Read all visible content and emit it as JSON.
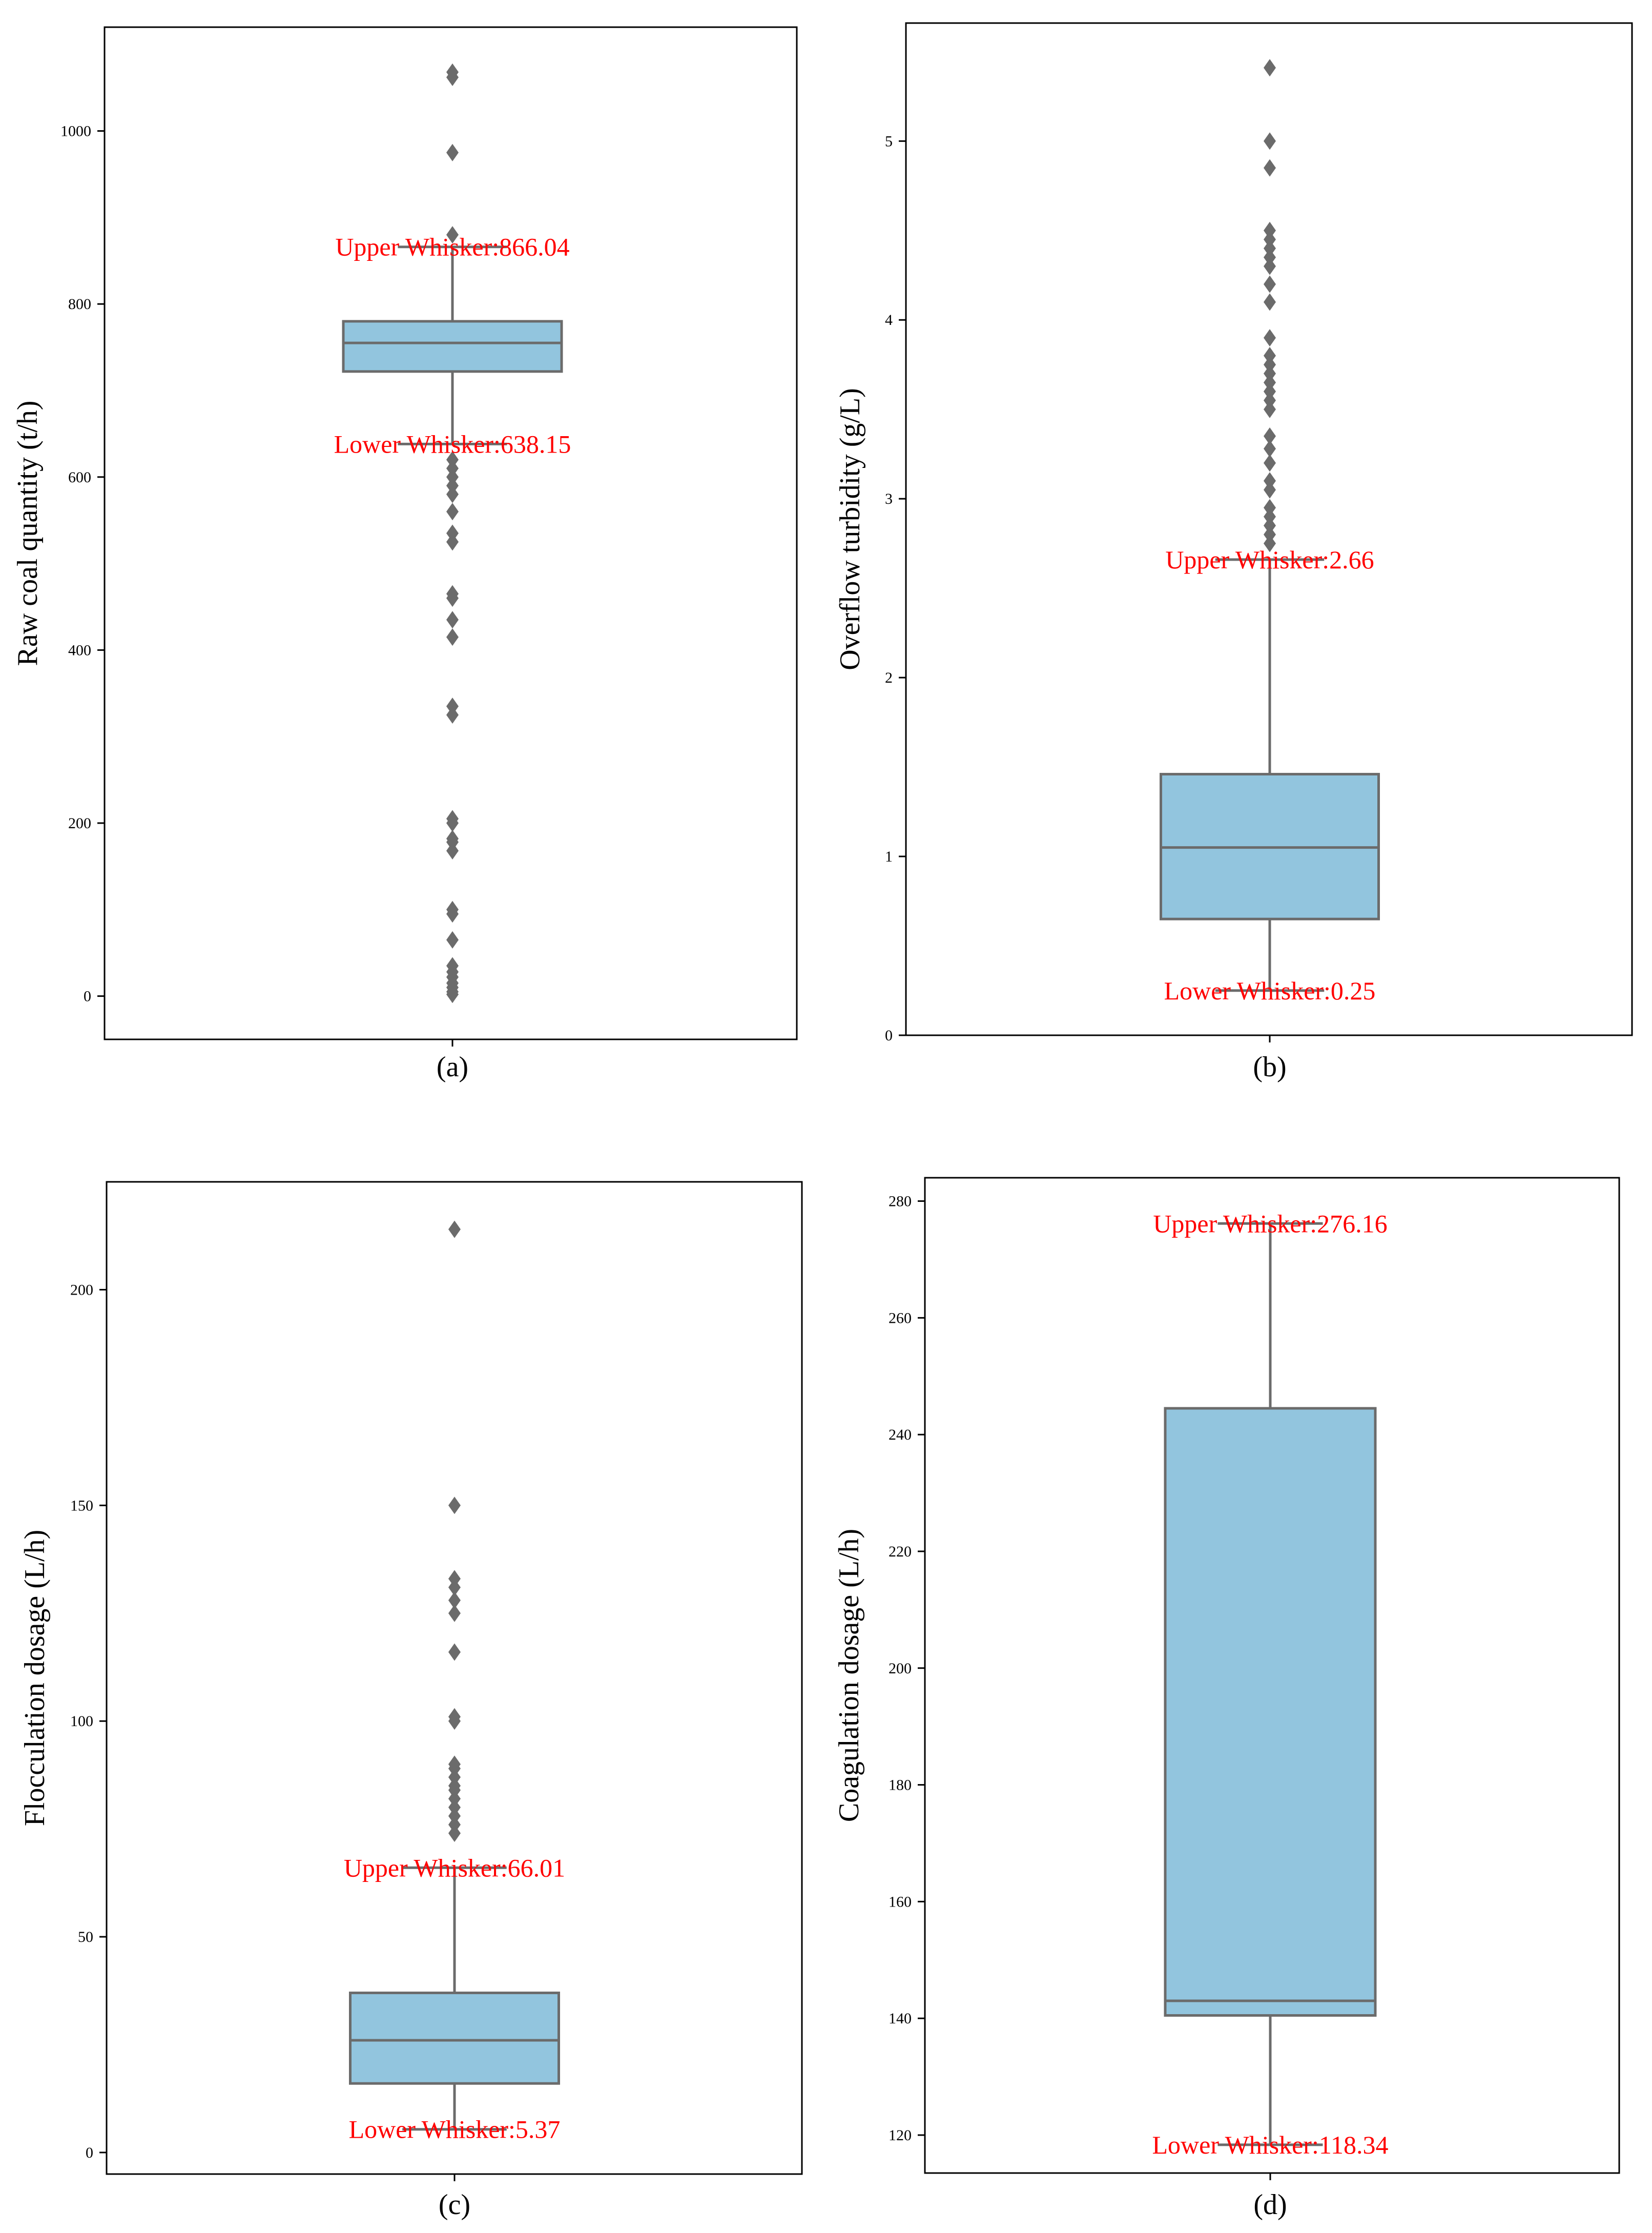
{
  "colors": {
    "box_fill": "#92c5de",
    "box_edge": "#6b6b6b",
    "outlier": "#6b6b6b",
    "annotation": "#ff0000",
    "axis": "#000000"
  },
  "chart_data": [
    {
      "type": "box",
      "caption": "(a)",
      "ylabel": "Raw coal quantity (t/h)",
      "ylim": [
        -50,
        1120
      ],
      "yticks": [
        0,
        200,
        400,
        600,
        800,
        1000
      ],
      "tick_labels": [
        "0",
        "200",
        "400",
        "600",
        "800",
        "1000"
      ],
      "grid": false,
      "box": {
        "q1": 722,
        "median": 755,
        "q3": 780,
        "whisker_low": 638.15,
        "whisker_high": 866.04
      },
      "outliers": [
        1068,
        1062,
        975,
        880,
        620,
        610,
        600,
        590,
        580,
        560,
        535,
        525,
        465,
        460,
        435,
        415,
        335,
        325,
        205,
        200,
        182,
        178,
        168,
        100,
        95,
        65,
        35,
        28,
        22,
        15,
        10,
        5,
        2
      ],
      "annotations": [
        {
          "text": "Upper Whisker:866.04",
          "value": 866.04
        },
        {
          "text": "Lower Whisker:638.15",
          "value": 638.15
        }
      ]
    },
    {
      "type": "box",
      "caption": "(b)",
      "ylabel": "Overflow turbidity (g/L)",
      "ylim": [
        0,
        5.66
      ],
      "yticks": [
        0,
        1,
        2,
        3,
        4,
        5
      ],
      "tick_labels": [
        "0",
        "1",
        "2",
        "3",
        "4",
        "5"
      ],
      "grid": false,
      "box": {
        "q1": 0.65,
        "median": 1.05,
        "q3": 1.46,
        "whisker_low": 0.25,
        "whisker_high": 2.66
      },
      "outliers": [
        5.41,
        5.0,
        4.85,
        4.5,
        4.45,
        4.4,
        4.35,
        4.3,
        4.2,
        4.1,
        3.9,
        3.8,
        3.75,
        3.7,
        3.65,
        3.6,
        3.55,
        3.5,
        3.35,
        3.28,
        3.2,
        3.1,
        3.05,
        2.95,
        2.9,
        2.85,
        2.8,
        2.75
      ],
      "annotations": [
        {
          "text": "Upper Whisker:2.66",
          "value": 2.66
        },
        {
          "text": "Lower Whisker:0.25",
          "value": 0.25
        }
      ]
    },
    {
      "type": "box",
      "caption": "(c)",
      "ylabel": "Flocculation dosage (L/h)",
      "ylim": [
        -5,
        225
      ],
      "yticks": [
        0,
        50,
        100,
        150,
        200
      ],
      "tick_labels": [
        "0",
        "50",
        "100",
        "150",
        "200"
      ],
      "grid": false,
      "box": {
        "q1": 16,
        "median": 26,
        "q3": 37,
        "whisker_low": 5.37,
        "whisker_high": 66.01
      },
      "outliers": [
        214,
        150,
        133,
        131,
        128,
        125,
        116,
        101,
        100,
        90,
        89,
        87,
        85,
        84,
        82,
        80,
        78,
        76,
        74
      ],
      "annotations": [
        {
          "text": "Upper Whisker:66.01",
          "value": 66.01
        },
        {
          "text": "Lower Whisker:5.37",
          "value": 5.37
        }
      ]
    },
    {
      "type": "box",
      "caption": "(d)",
      "ylabel": "Coagulation dosage (L/h)",
      "ylim": [
        113.5,
        284
      ],
      "yticks": [
        120,
        140,
        160,
        180,
        200,
        220,
        240,
        260,
        280
      ],
      "tick_labels": [
        "120",
        "140",
        "160",
        "180",
        "200",
        "220",
        "240",
        "260",
        "280"
      ],
      "grid": false,
      "box": {
        "q1": 140.5,
        "median": 143,
        "q3": 244.5,
        "whisker_low": 118.34,
        "whisker_high": 276.16
      },
      "outliers": [],
      "annotations": [
        {
          "text": "Upper Whisker:276.16",
          "value": 276.16
        },
        {
          "text": "Lower Whisker:118.34",
          "value": 118.34
        }
      ]
    }
  ]
}
